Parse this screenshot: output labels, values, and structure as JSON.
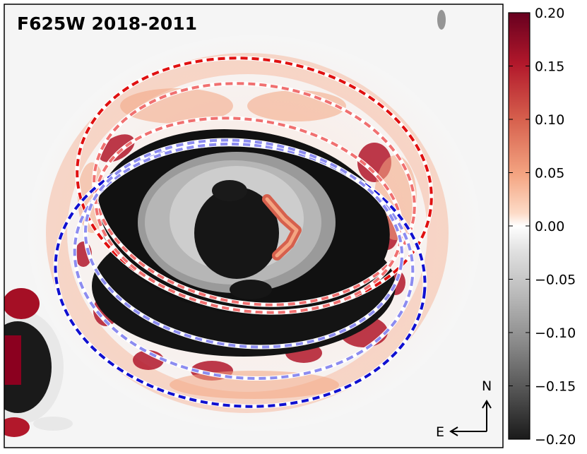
{
  "panel": {
    "title": "F625W 2018-2011",
    "compass": {
      "north": "N",
      "east": "E"
    }
  },
  "colorbar": {
    "ticks": [
      "0.20",
      "0.15",
      "0.10",
      "0.05",
      "0.00",
      "−0.05",
      "−0.10",
      "−0.15",
      "−0.20"
    ],
    "range": [
      -0.2,
      0.2
    ],
    "colormap": "RdGy (red positive, grey/black negative)"
  },
  "colors": {
    "red_ellipse": "#e01010",
    "light_red_ellipse": "#f07070",
    "blue_ellipse": "#1010d0",
    "light_blue_ellipse": "#8c8cf0",
    "positive": "#7a0020",
    "negative": "#111111"
  }
}
